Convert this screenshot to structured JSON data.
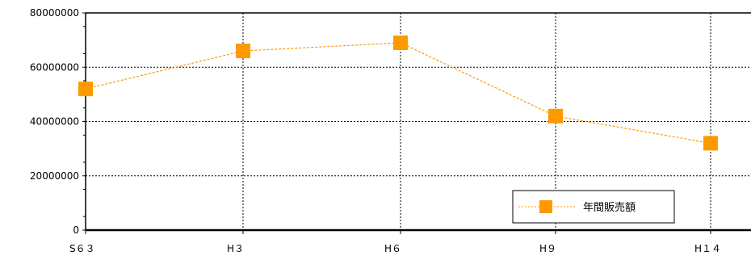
{
  "chart_data": {
    "type": "line",
    "categories": [
      "S６３",
      "H３",
      "H６",
      "H９",
      "H１４"
    ],
    "series": [
      {
        "name": "年間販売額",
        "values": [
          52000000,
          66000000,
          69000000,
          42000000,
          32000000
        ],
        "color": "#ff9900"
      }
    ],
    "ylim": [
      0,
      80000000
    ],
    "yticks": [
      "0",
      "20000000",
      "40000000",
      "60000000",
      "80000000"
    ],
    "grid": true,
    "legend_position": "bottom-right"
  }
}
